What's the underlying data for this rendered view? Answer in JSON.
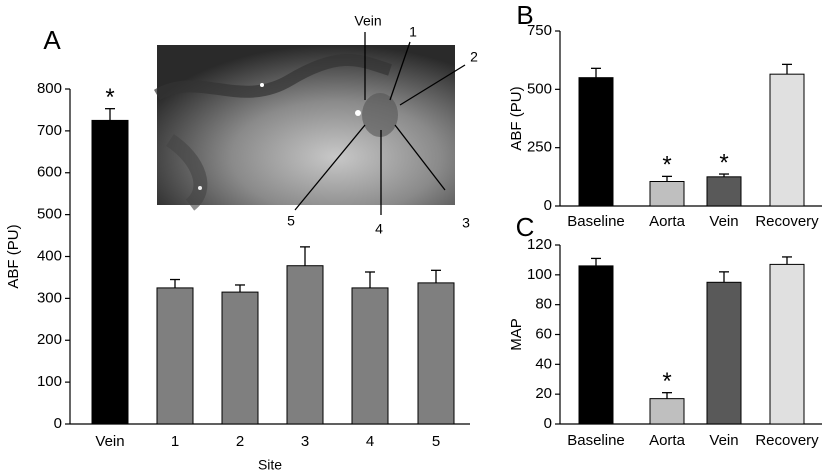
{
  "chart_data": [
    {
      "type": "bar",
      "panel": "A",
      "ylabel": "ABF (PU)",
      "xlabel": "Site",
      "categories": [
        "Vein",
        "1",
        "2",
        "3",
        "4",
        "5"
      ],
      "values": [
        725,
        325,
        315,
        378,
        325,
        337
      ],
      "errors": [
        28,
        20,
        17,
        45,
        38,
        30
      ],
      "colors": [
        "#000000",
        "#7f7f7f",
        "#7f7f7f",
        "#7f7f7f",
        "#7f7f7f",
        "#7f7f7f"
      ],
      "ylim": [
        0,
        800
      ],
      "yticks": [
        0,
        100,
        200,
        300,
        400,
        500,
        600,
        700,
        800
      ],
      "annotations": [
        {
          "text": "*",
          "category": "Vein"
        }
      ],
      "inset_labels": [
        "Vein",
        "1",
        "2",
        "3",
        "4",
        "5"
      ]
    },
    {
      "type": "bar",
      "panel": "B",
      "ylabel": "ABF (PU)",
      "categories": [
        "Baseline",
        "Aorta",
        "Vein",
        "Recovery"
      ],
      "values": [
        550,
        105,
        125,
        565
      ],
      "errors": [
        40,
        22,
        12,
        42
      ],
      "colors": [
        "#000000",
        "#bfbfbf",
        "#595959",
        "#e0e0e0"
      ],
      "ylim": [
        0,
        750
      ],
      "yticks": [
        0,
        250,
        500,
        750
      ],
      "annotations": [
        {
          "text": "*",
          "category": "Aorta"
        },
        {
          "text": "*",
          "category": "Vein"
        }
      ]
    },
    {
      "type": "bar",
      "panel": "C",
      "ylabel": "MAP",
      "categories": [
        "Baseline",
        "Aorta",
        "Vein",
        "Recovery"
      ],
      "values": [
        106,
        17,
        95,
        107
      ],
      "errors": [
        5,
        4,
        7,
        5
      ],
      "colors": [
        "#000000",
        "#bfbfbf",
        "#595959",
        "#e0e0e0"
      ],
      "ylim": [
        0,
        120
      ],
      "yticks": [
        0,
        20,
        40,
        60,
        80,
        100,
        120
      ],
      "annotations": [
        {
          "text": "*",
          "category": "Aorta"
        }
      ]
    }
  ]
}
